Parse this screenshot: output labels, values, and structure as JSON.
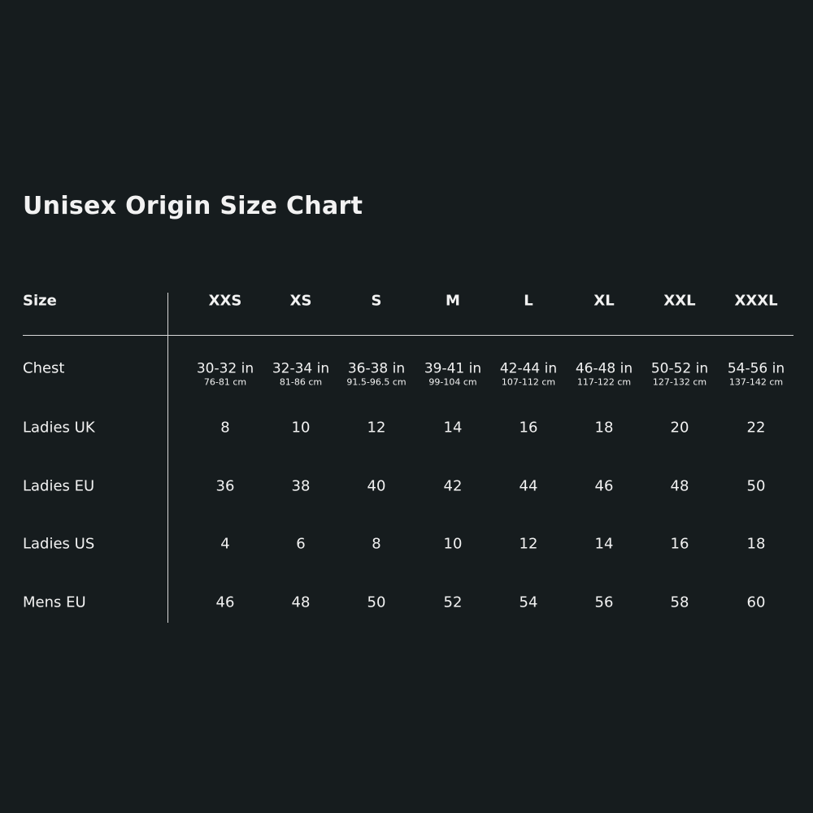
{
  "title": "Unisex Origin Size Chart",
  "table": {
    "header_label": "Size",
    "sizes": [
      "XXS",
      "XS",
      "S",
      "M",
      "L",
      "XL",
      "XXL",
      "XXXL"
    ],
    "chest": {
      "label": "Chest",
      "inches": [
        "30-32 in",
        "32-34 in",
        "36-38 in",
        "39-41 in",
        "42-44 in",
        "46-48 in",
        "50-52 in",
        "54-56 in"
      ],
      "cm": [
        "76-81 cm",
        "81-86 cm",
        "91.5-96.5 cm",
        "99-104 cm",
        "107-112 cm",
        "117-122 cm",
        "127-132 cm",
        "137-142 cm"
      ]
    },
    "rows": [
      {
        "label": "Ladies UK",
        "values": [
          "8",
          "10",
          "12",
          "14",
          "16",
          "18",
          "20",
          "22"
        ]
      },
      {
        "label": "Ladies EU",
        "values": [
          "36",
          "38",
          "40",
          "42",
          "44",
          "46",
          "48",
          "50"
        ]
      },
      {
        "label": "Ladies US",
        "values": [
          "4",
          "6",
          "8",
          "10",
          "12",
          "14",
          "16",
          "18"
        ]
      },
      {
        "label": "Mens EU",
        "values": [
          "46",
          "48",
          "50",
          "52",
          "54",
          "56",
          "58",
          "60"
        ]
      }
    ]
  }
}
